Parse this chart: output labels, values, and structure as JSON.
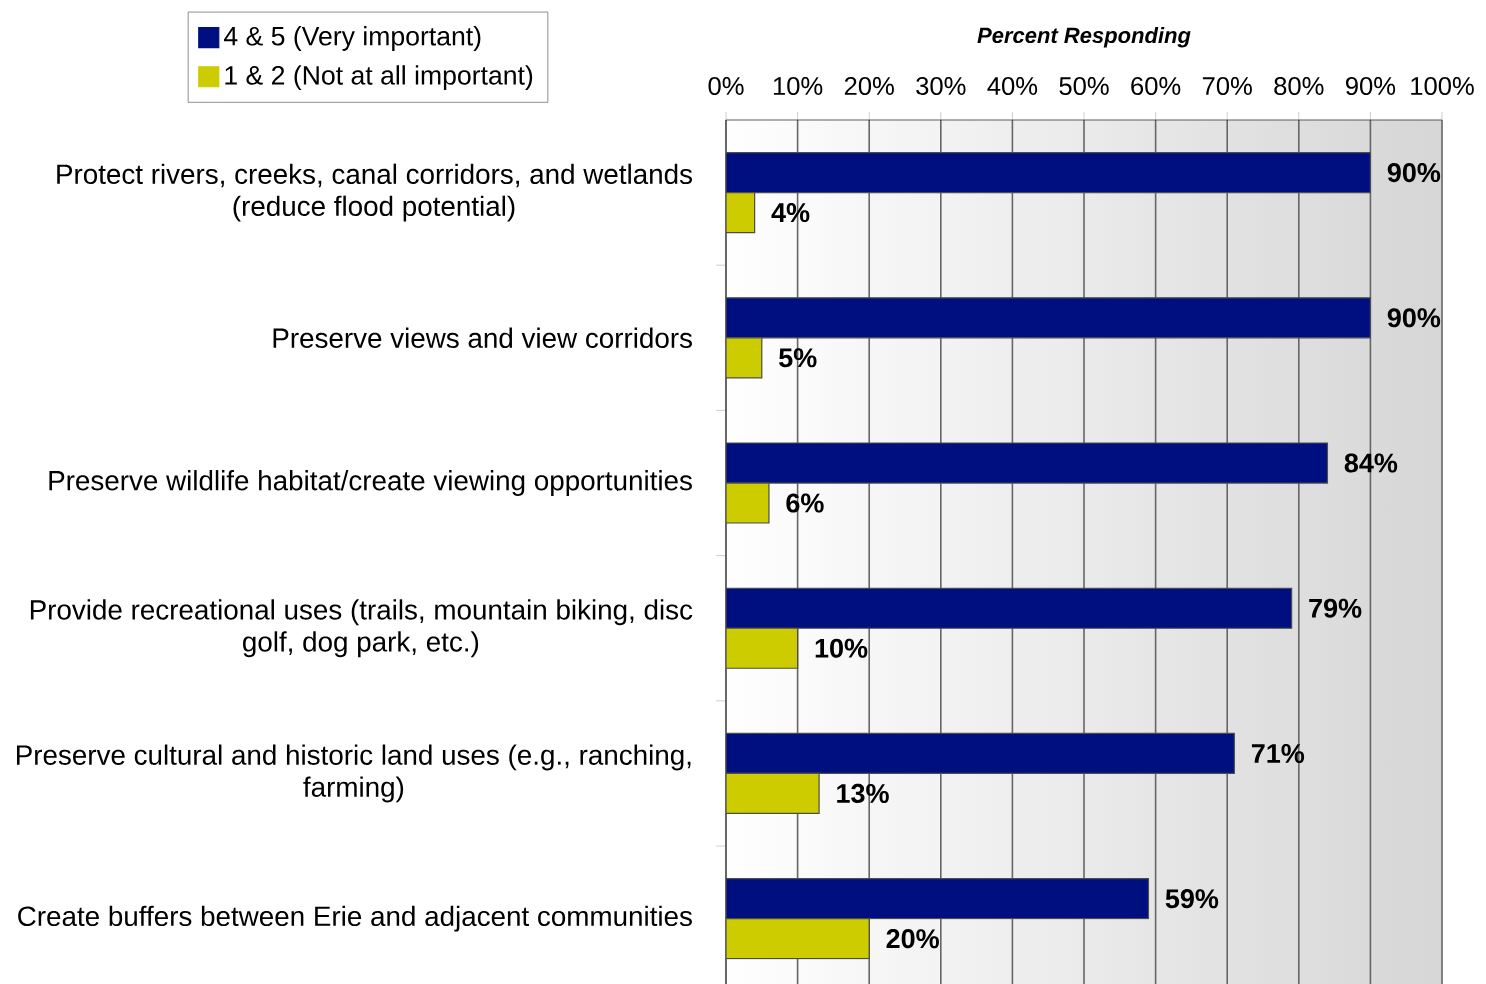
{
  "chart_data": {
    "type": "bar",
    "orientation": "horizontal",
    "xlabel": "Percent Responding",
    "categories": [
      "Protect rivers, creeks, canal corridors, and wetlands (reduce flood potential)",
      "Preserve views and view corridors",
      "Preserve wildlife habitat/create viewing opportunities",
      "Provide recreational uses (trails, mountain biking, disc golf, dog park, etc.)",
      "Preserve cultural and historic land uses (e.g., ranching, farming)",
      "Create buffers between Erie and adjacent communities"
    ],
    "series": [
      {
        "name": "4 & 5 (Very important)",
        "color": "#000f7f",
        "values": [
          90,
          90,
          84,
          79,
          71,
          59
        ],
        "value_labels": [
          "90%",
          "90%",
          "84%",
          "79%",
          "71%",
          "59%"
        ]
      },
      {
        "name": "1 & 2 (Not at all important)",
        "color": "#cccc00",
        "values": [
          4,
          5,
          6,
          10,
          13,
          20
        ],
        "value_labels": [
          "4%",
          "5%",
          "6%",
          "10%",
          "13%",
          "20%"
        ]
      }
    ],
    "xlim": [
      0,
      100
    ],
    "xticks": [
      {
        "value": 0,
        "label": "0%"
      },
      {
        "value": 10,
        "label": "10%"
      },
      {
        "value": 20,
        "label": "20%"
      },
      {
        "value": 30,
        "label": "30%"
      },
      {
        "value": 40,
        "label": "40%"
      },
      {
        "value": 50,
        "label": "50%"
      },
      {
        "value": 60,
        "label": "60%"
      },
      {
        "value": 70,
        "label": "70%"
      },
      {
        "value": 80,
        "label": "80%"
      },
      {
        "value": 90,
        "label": "90%"
      },
      {
        "value": 100,
        "label": "100%"
      }
    ],
    "grid": "x",
    "legend": "top left"
  }
}
